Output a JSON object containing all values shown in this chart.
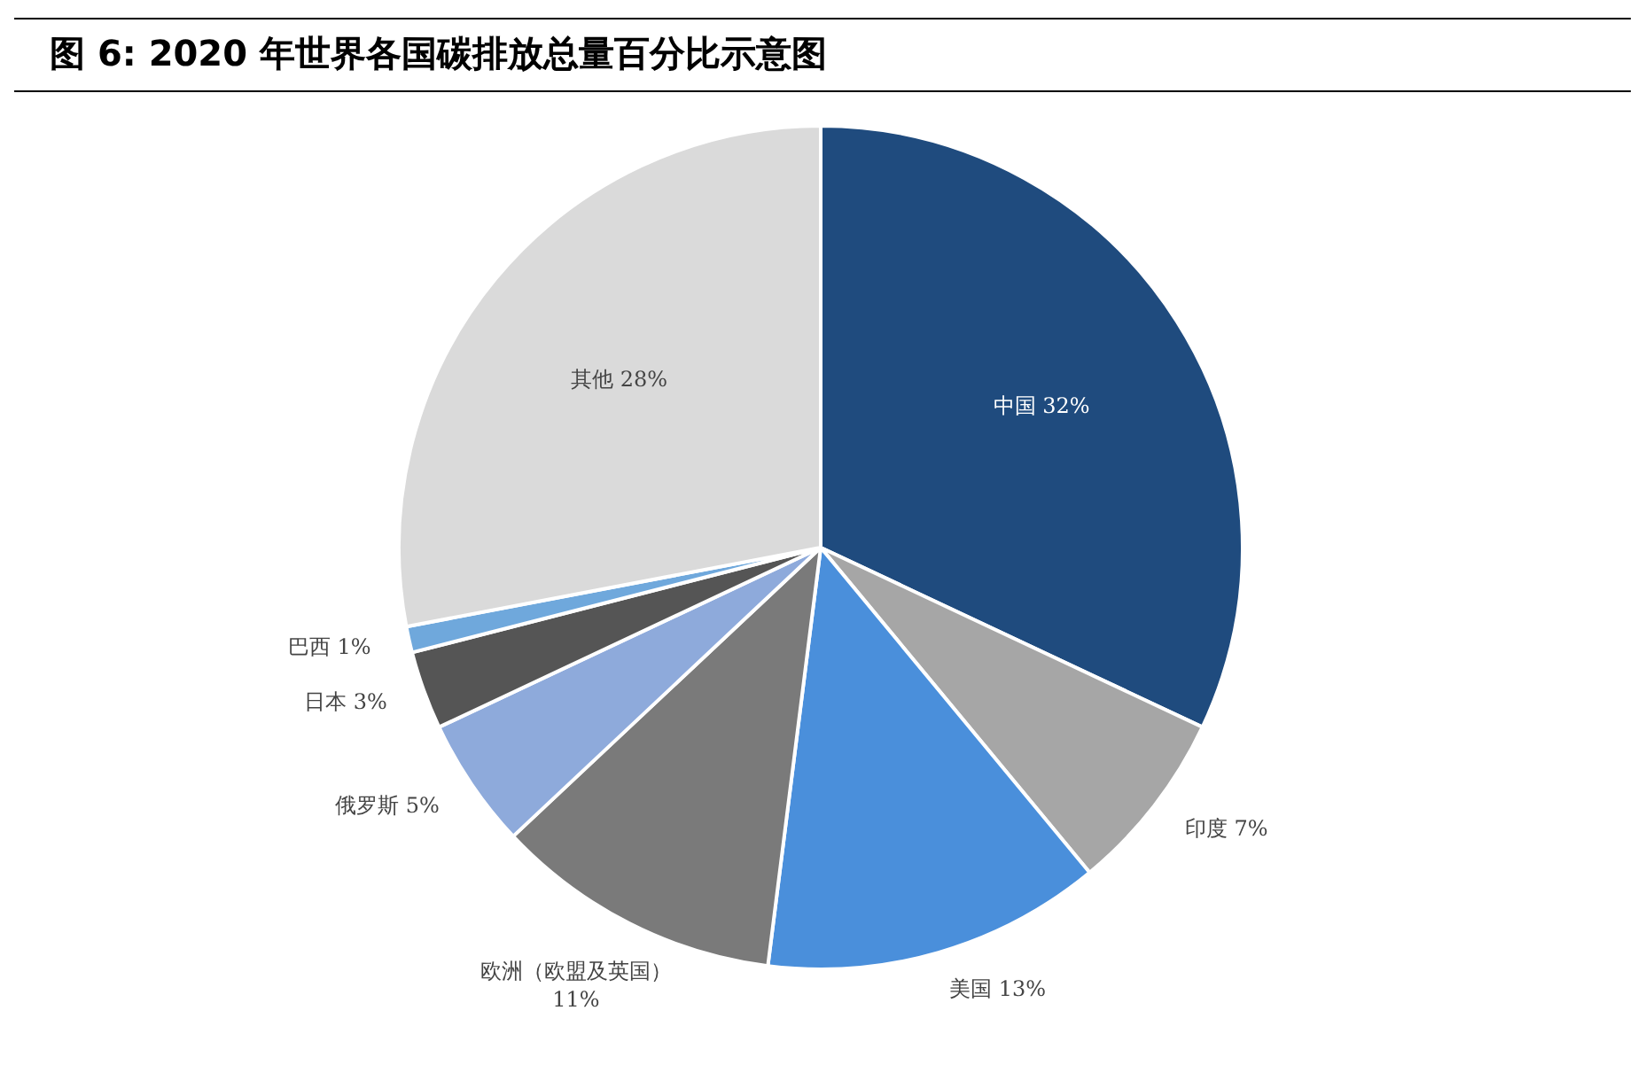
{
  "chart_data": {
    "type": "pie",
    "title": "图 6:  2020 年世界各国碳排放总量百分比示意图",
    "categories": [
      "中国",
      "印度",
      "美国",
      "欧洲（欧盟及英国）",
      "俄罗斯",
      "日本",
      "巴西",
      "其他"
    ],
    "values": [
      32,
      7,
      13,
      11,
      5,
      3,
      1,
      28
    ],
    "value_labels": [
      "32%",
      "7%",
      "13%",
      "11%",
      "5%",
      "3%",
      "1%",
      "28%"
    ],
    "colors": [
      "#1f4b7e",
      "#a6a6a6",
      "#4a8fdb",
      "#7a7a7a",
      "#8eaadb",
      "#555555",
      "#6fa8dc",
      "#dadada"
    ],
    "legend": false
  }
}
